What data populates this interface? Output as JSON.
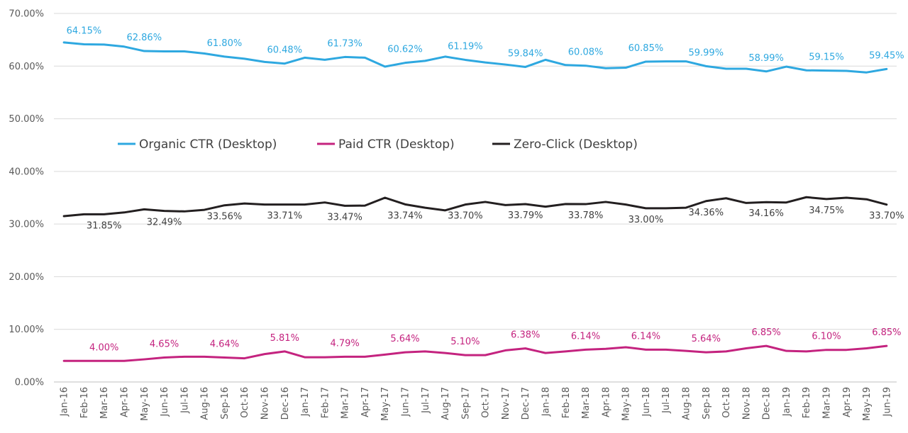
{
  "chart_data": {
    "type": "line",
    "title": "",
    "xlabel": "",
    "ylabel": "",
    "ylim": [
      0,
      70
    ],
    "yticks": [
      "0.00%",
      "10.00%",
      "20.00%",
      "30.00%",
      "40.00%",
      "50.00%",
      "60.00%",
      "70.00%"
    ],
    "grid": true,
    "legend_position": "inside-upper-left",
    "categories": [
      "Jan-16",
      "Feb-16",
      "Mar-16",
      "Apr-16",
      "May-16",
      "Jun-16",
      "Jul-16",
      "Aug-16",
      "Sep-16",
      "Oct-16",
      "Nov-16",
      "Dec-16",
      "Jan-17",
      "Feb-17",
      "Mar-17",
      "Apr-17",
      "May-17",
      "Jun-17",
      "Jul-17",
      "Aug-17",
      "Sep-17",
      "Oct-17",
      "Nov-17",
      "Dec-17",
      "Jan-18",
      "Feb-18",
      "Mar-18",
      "Apr-18",
      "May-18",
      "Jun-18",
      "Jul-18",
      "Aug-18",
      "Sep-18",
      "Oct-18",
      "Nov-18",
      "Dec-18",
      "Jan-19",
      "Feb-19",
      "Mar-19",
      "Apr-19",
      "May-19",
      "Jun-19"
    ],
    "series": [
      {
        "name": "Organic CTR (Desktop)",
        "color": "#2EA8E0",
        "values": [
          64.5,
          64.15,
          64.1,
          63.7,
          62.86,
          62.8,
          62.8,
          62.4,
          61.8,
          61.4,
          60.8,
          60.48,
          61.6,
          61.2,
          61.73,
          61.6,
          59.9,
          60.62,
          61.0,
          61.8,
          61.19,
          60.7,
          60.3,
          59.84,
          61.2,
          60.2,
          60.08,
          59.6,
          59.7,
          60.85,
          60.9,
          60.9,
          59.99,
          59.5,
          59.5,
          58.99,
          59.9,
          59.2,
          59.15,
          59.1,
          58.8,
          59.45
        ],
        "labels": [
          null,
          "64.15%",
          null,
          null,
          "62.86%",
          null,
          null,
          null,
          "61.80%",
          null,
          null,
          "60.48%",
          null,
          null,
          "61.73%",
          null,
          null,
          "60.62%",
          null,
          null,
          "61.19%",
          null,
          null,
          "59.84%",
          null,
          null,
          "60.08%",
          null,
          null,
          "60.85%",
          null,
          null,
          "59.99%",
          null,
          null,
          "58.99%",
          null,
          null,
          "59.15%",
          null,
          null,
          "59.45%"
        ]
      },
      {
        "name": "Paid CTR (Desktop)",
        "color": "#C4237F",
        "values": [
          4.0,
          4.0,
          4.0,
          4.0,
          4.3,
          4.65,
          4.8,
          4.8,
          4.64,
          4.5,
          5.3,
          5.81,
          4.7,
          4.7,
          4.79,
          4.8,
          5.2,
          5.64,
          5.8,
          5.5,
          5.1,
          5.1,
          6.0,
          6.38,
          5.5,
          5.8,
          6.14,
          6.3,
          6.6,
          6.14,
          6.14,
          5.9,
          5.64,
          5.8,
          6.4,
          6.85,
          5.9,
          5.8,
          6.1,
          6.1,
          6.4,
          6.85
        ],
        "labels": [
          null,
          null,
          "4.00%",
          null,
          null,
          "4.65%",
          null,
          null,
          "4.64%",
          null,
          null,
          "5.81%",
          null,
          null,
          "4.79%",
          null,
          null,
          "5.64%",
          null,
          null,
          "5.10%",
          null,
          null,
          "6.38%",
          null,
          null,
          "6.14%",
          null,
          null,
          "6.14%",
          null,
          null,
          "5.64%",
          null,
          null,
          "6.85%",
          null,
          null,
          "6.10%",
          null,
          null,
          "6.85%"
        ]
      },
      {
        "name": "Zero-Click (Desktop)",
        "color": "#231F20",
        "values": [
          31.5,
          31.85,
          31.85,
          32.2,
          32.8,
          32.49,
          32.4,
          32.7,
          33.56,
          33.9,
          33.71,
          33.71,
          33.71,
          34.1,
          33.47,
          33.5,
          35.0,
          33.74,
          33.1,
          32.6,
          33.7,
          34.2,
          33.6,
          33.79,
          33.3,
          33.8,
          33.78,
          34.2,
          33.7,
          33.0,
          33.0,
          33.1,
          34.36,
          34.9,
          34.0,
          34.16,
          34.1,
          35.1,
          34.75,
          35.0,
          34.7,
          33.7
        ],
        "labels": [
          null,
          null,
          "31.85%",
          null,
          null,
          "32.49%",
          null,
          null,
          "33.56%",
          null,
          null,
          "33.71%",
          null,
          null,
          "33.47%",
          null,
          null,
          "33.74%",
          null,
          null,
          "33.70%",
          null,
          null,
          "33.79%",
          null,
          null,
          "33.78%",
          null,
          null,
          "33.00%",
          null,
          null,
          "34.36%",
          null,
          null,
          "34.16%",
          null,
          null,
          "34.75%",
          null,
          null,
          "33.70%"
        ]
      }
    ]
  }
}
